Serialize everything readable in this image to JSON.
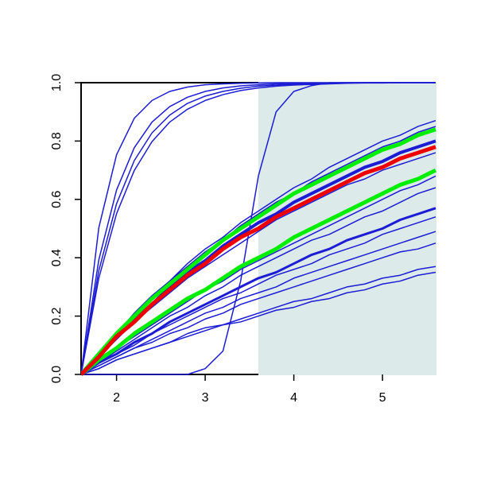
{
  "chart_data": {
    "type": "line",
    "x": [
      1.6,
      1.8,
      2.0,
      2.2,
      2.4,
      2.6,
      2.8,
      3.0,
      3.2,
      3.4,
      3.6,
      3.8,
      4.0,
      4.2,
      4.4,
      4.6,
      4.8,
      5.0,
      5.2,
      5.4,
      5.6
    ],
    "xlim": [
      1.6,
      5.6
    ],
    "ylim": [
      0,
      1
    ],
    "xticks": [
      2,
      3,
      4,
      5
    ],
    "yticks": [
      {
        "value": 0,
        "label": "0.0"
      },
      0.2,
      0.4,
      0.6,
      0.8,
      {
        "value": 1,
        "label": "1.0"
      }
    ],
    "shade": {
      "xlim": [
        3.6,
        5.6
      ],
      "color": "#ddeaea"
    },
    "series": [
      {
        "color": "#1c1cd4",
        "width": 1.5,
        "values": [
          0,
          0.503,
          0.753,
          0.878,
          0.939,
          0.97,
          0.985,
          0.993,
          0.996,
          0.998,
          0.999,
          1,
          1,
          1,
          1,
          1,
          1,
          1,
          1,
          1,
          1
        ]
      },
      {
        "color": "#1c1cd4",
        "width": 1.5,
        "values": [
          0,
          0.393,
          0.632,
          0.777,
          0.865,
          0.918,
          0.95,
          0.97,
          0.982,
          0.989,
          0.993,
          0.996,
          0.998,
          0.998,
          0.999,
          1,
          1,
          1,
          1,
          1,
          1
        ]
      },
      {
        "color": "#1c1cd4",
        "width": 1.5,
        "values": [
          0,
          0.356,
          0.585,
          0.733,
          0.828,
          0.889,
          0.929,
          0.954,
          0.97,
          0.981,
          0.988,
          0.992,
          0.995,
          0.997,
          0.998,
          0.999,
          1,
          1,
          1,
          1,
          1
        ]
      },
      {
        "color": "#1c1cd4",
        "width": 1.5,
        "values": [
          0,
          0.33,
          0.551,
          0.699,
          0.798,
          0.865,
          0.909,
          0.939,
          0.959,
          0.973,
          0.982,
          0.988,
          0.992,
          0.994,
          0.996,
          0.998,
          0.999,
          0.999,
          1,
          1,
          1
        ]
      },
      {
        "color": "#1c1cd4",
        "width": 1.5,
        "values": [
          0,
          0,
          0,
          0,
          0,
          0,
          0,
          0.02,
          0.08,
          0.32,
          0.68,
          0.9,
          0.97,
          0.99,
          1,
          1,
          1,
          1,
          1,
          1,
          1
        ]
      },
      {
        "color": "#1c1cd4",
        "width": 1.5,
        "values": [
          0,
          0.07,
          0.14,
          0.21,
          0.27,
          0.32,
          0.38,
          0.43,
          0.47,
          0.52,
          0.56,
          0.6,
          0.64,
          0.67,
          0.71,
          0.74,
          0.77,
          0.8,
          0.82,
          0.85,
          0.87
        ]
      },
      {
        "color": "#1c1cd4",
        "width": 1.5,
        "values": [
          0,
          0.07,
          0.14,
          0.2,
          0.26,
          0.32,
          0.37,
          0.42,
          0.46,
          0.51,
          0.55,
          0.59,
          0.62,
          0.66,
          0.69,
          0.72,
          0.75,
          0.78,
          0.8,
          0.83,
          0.85
        ]
      },
      {
        "color": "#1c1cd4",
        "width": 4,
        "values": [
          0,
          0.07,
          0.13,
          0.19,
          0.24,
          0.3,
          0.35,
          0.39,
          0.44,
          0.48,
          0.52,
          0.55,
          0.59,
          0.62,
          0.65,
          0.68,
          0.71,
          0.73,
          0.76,
          0.78,
          0.8
        ]
      },
      {
        "color": "#1c1cd4",
        "width": 1.5,
        "values": [
          0,
          0.06,
          0.12,
          0.18,
          0.23,
          0.28,
          0.33,
          0.37,
          0.41,
          0.45,
          0.49,
          0.53,
          0.56,
          0.59,
          0.62,
          0.65,
          0.67,
          0.7,
          0.72,
          0.74,
          0.76
        ]
      },
      {
        "color": "#1c1cd4",
        "width": 1.5,
        "values": [
          0,
          0.05,
          0.09,
          0.13,
          0.17,
          0.21,
          0.25,
          0.29,
          0.32,
          0.36,
          0.39,
          0.42,
          0.45,
          0.48,
          0.51,
          0.54,
          0.57,
          0.6,
          0.63,
          0.65,
          0.68
        ]
      },
      {
        "color": "#1c1cd4",
        "width": 1.5,
        "values": [
          0,
          0.04,
          0.08,
          0.12,
          0.16,
          0.2,
          0.23,
          0.27,
          0.3,
          0.34,
          0.37,
          0.4,
          0.43,
          0.46,
          0.48,
          0.51,
          0.54,
          0.56,
          0.59,
          0.62,
          0.64
        ]
      },
      {
        "color": "#1c1cd4",
        "width": 3,
        "values": [
          0,
          0.04,
          0.07,
          0.11,
          0.14,
          0.18,
          0.21,
          0.24,
          0.27,
          0.3,
          0.33,
          0.35,
          0.38,
          0.41,
          0.43,
          0.46,
          0.48,
          0.5,
          0.53,
          0.55,
          0.57
        ]
      },
      {
        "color": "#1c1cd4",
        "width": 1.5,
        "values": [
          0,
          0.04,
          0.07,
          0.1,
          0.14,
          0.17,
          0.2,
          0.23,
          0.26,
          0.28,
          0.31,
          0.34,
          0.36,
          0.38,
          0.41,
          0.43,
          0.45,
          0.48,
          0.5,
          0.52,
          0.54
        ]
      },
      {
        "color": "#1c1cd4",
        "width": 1.5,
        "values": [
          0,
          0.03,
          0.06,
          0.09,
          0.12,
          0.15,
          0.18,
          0.21,
          0.23,
          0.26,
          0.28,
          0.3,
          0.33,
          0.35,
          0.37,
          0.39,
          0.41,
          0.43,
          0.45,
          0.47,
          0.49
        ]
      },
      {
        "color": "#1c1cd4",
        "width": 1.5,
        "values": [
          0,
          0.03,
          0.06,
          0.09,
          0.11,
          0.14,
          0.16,
          0.19,
          0.21,
          0.24,
          0.26,
          0.28,
          0.3,
          0.32,
          0.34,
          0.36,
          0.38,
          0.4,
          0.42,
          0.43,
          0.45
        ]
      },
      {
        "color": "#1c1cd4",
        "width": 1.5,
        "values": [
          0,
          0.02,
          0.05,
          0.07,
          0.09,
          0.11,
          0.14,
          0.16,
          0.17,
          0.19,
          0.21,
          0.23,
          0.25,
          0.26,
          0.28,
          0.3,
          0.31,
          0.33,
          0.34,
          0.36,
          0.37
        ]
      },
      {
        "color": "#1c1cd4",
        "width": 1.5,
        "values": [
          0,
          0.02,
          0.05,
          0.07,
          0.09,
          0.11,
          0.13,
          0.15,
          0.17,
          0.18,
          0.2,
          0.22,
          0.23,
          0.25,
          0.26,
          0.28,
          0.29,
          0.31,
          0.32,
          0.34,
          0.35
        ]
      },
      {
        "color": "#00ee00",
        "width": 5,
        "values": [
          0,
          0.07,
          0.14,
          0.2,
          0.26,
          0.31,
          0.36,
          0.41,
          0.46,
          0.5,
          0.54,
          0.58,
          0.62,
          0.65,
          0.68,
          0.71,
          0.74,
          0.77,
          0.79,
          0.82,
          0.84
        ]
      },
      {
        "color": "#00ee00",
        "width": 5,
        "values": [
          0,
          0.05,
          0.09,
          0.14,
          0.18,
          0.22,
          0.26,
          0.29,
          0.33,
          0.37,
          0.4,
          0.43,
          0.47,
          0.5,
          0.53,
          0.56,
          0.59,
          0.62,
          0.65,
          0.67,
          0.7
        ]
      },
      {
        "color": "#ee0000",
        "width": 5,
        "values": [
          0,
          0.06,
          0.13,
          0.18,
          0.24,
          0.29,
          0.34,
          0.38,
          0.43,
          0.47,
          0.5,
          0.54,
          0.57,
          0.6,
          0.63,
          0.66,
          0.69,
          0.71,
          0.74,
          0.76,
          0.78
        ]
      }
    ]
  }
}
